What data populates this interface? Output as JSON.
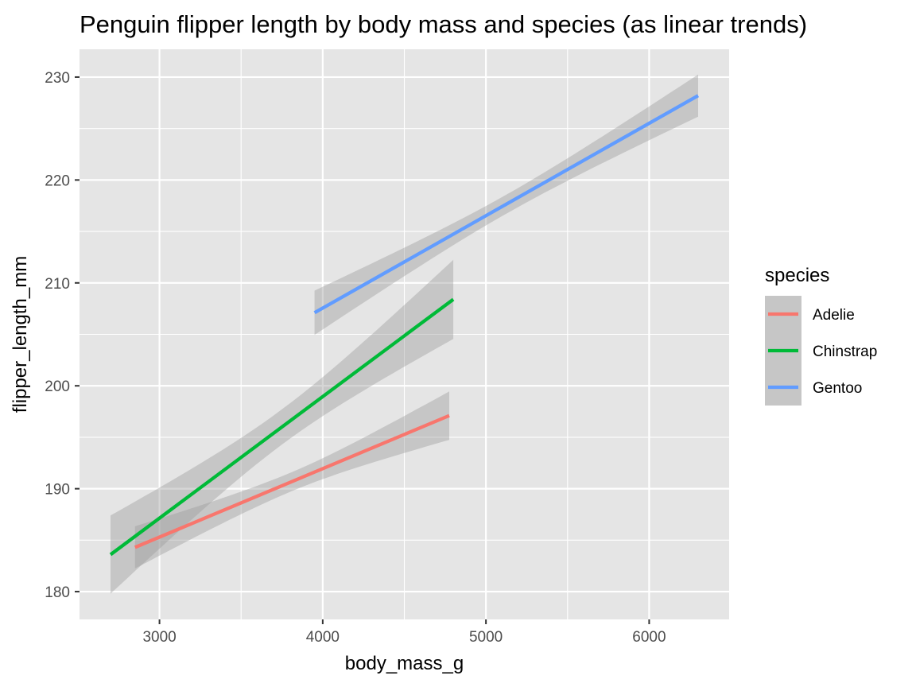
{
  "chart_data": {
    "type": "line",
    "title": "Penguin flipper length by body mass and species (as linear trends)",
    "xlabel": "body_mass_g",
    "ylabel": "flipper_length_mm",
    "xlim": [
      2510,
      6490
    ],
    "ylim": [
      177.3,
      232.7
    ],
    "x_ticks": [
      3000,
      4000,
      5000,
      6000
    ],
    "x_tick_labels": [
      "3000",
      "4000",
      "5000",
      "6000"
    ],
    "y_ticks": [
      180,
      190,
      200,
      210,
      220,
      230
    ],
    "y_tick_labels": [
      "180",
      "190",
      "200",
      "210",
      "220",
      "230"
    ],
    "grid": true,
    "legend_title": "species",
    "legend_position": "right",
    "colors": {
      "panel_background": "#e5e5e5",
      "grid_line": "#ffffff",
      "confidence_band": "#999999"
    },
    "series": [
      {
        "name": "Adelie",
        "color": "#f8766d",
        "x": [
          2850,
          4775
        ],
        "y": [
          184.3,
          197.1
        ],
        "ci_lower": [
          182.3,
          194.8
        ],
        "ci_upper": [
          186.4,
          199.5
        ]
      },
      {
        "name": "Chinstrap",
        "color": "#00ba38",
        "x": [
          2700,
          4800
        ],
        "y": [
          183.6,
          208.4
        ],
        "ci_lower": [
          179.8,
          204.6
        ],
        "ci_upper": [
          187.4,
          212.3
        ]
      },
      {
        "name": "Gentoo",
        "color": "#619cff",
        "x": [
          3950,
          6300
        ],
        "y": [
          207.1,
          228.2
        ],
        "ci_lower": [
          205.0,
          226.2
        ],
        "ci_upper": [
          209.3,
          230.3
        ]
      }
    ]
  }
}
